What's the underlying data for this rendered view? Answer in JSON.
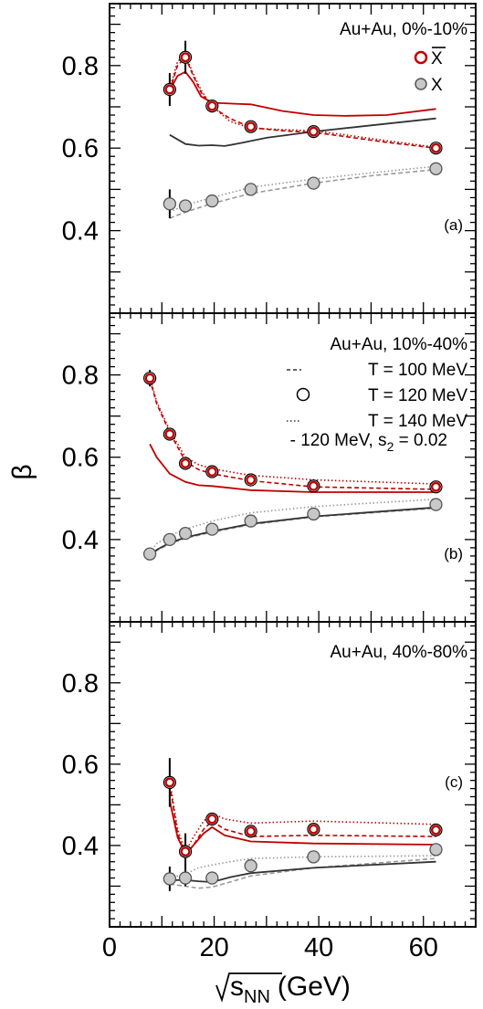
{
  "colors": {
    "anti": "#c00000",
    "particle": "#333333",
    "dashed_particle": "#999999",
    "marker_fill": "#c8c8c8",
    "frame": "#000000"
  },
  "chart_data": {
    "type": "scatter",
    "ylabel": "β",
    "xlabel_main": "s",
    "xlabel_sub": "NN",
    "xlabel_unit": "(GeV)",
    "xlim": [
      0,
      70
    ],
    "x_ticks": [
      0,
      20,
      40,
      60
    ],
    "y_ticks": [
      0.4,
      0.6,
      0.8
    ],
    "legend": {
      "anti_symbol": "X",
      "particle_symbol": "X",
      "line_dashed": "T = 100 MeV",
      "line_open": "T = 120 MeV",
      "line_dotted": "T = 140 MeV",
      "line_solid": "- 120 MeV, s",
      "line_solid_sub": "2",
      "line_solid_tail": " = 0.02"
    },
    "panels": [
      {
        "title": "Au+Au, 0%-10%",
        "label": "(a)",
        "ylim": [
          0.2,
          0.95
        ],
        "anti_points": {
          "x": [
            11.5,
            14.5,
            19.6,
            27,
            39,
            62.4
          ],
          "y": [
            0.742,
            0.82,
            0.702,
            0.652,
            0.64,
            0.6
          ],
          "err": [
            0.04,
            0.04,
            0.015,
            0.01,
            0.008,
            0.008
          ]
        },
        "particle_points": {
          "x": [
            11.5,
            14.5,
            19.6,
            27,
            39,
            62.4
          ],
          "y": [
            0.465,
            0.46,
            0.472,
            0.5,
            0.515,
            0.55
          ],
          "err": [
            0.035,
            0.012,
            0.01,
            0.008,
            0.008,
            0.008
          ]
        },
        "anti_solid": {
          "x": [
            11.5,
            13,
            14.5,
            16,
            17.5,
            19.6,
            23,
            27,
            33,
            39,
            45,
            53,
            62.4
          ],
          "y": [
            0.74,
            0.775,
            0.785,
            0.76,
            0.725,
            0.71,
            0.708,
            0.706,
            0.69,
            0.68,
            0.678,
            0.68,
            0.695
          ]
        },
        "anti_dashed": {
          "x": [
            11.5,
            13,
            14.5,
            16,
            17.5,
            19.6,
            23,
            27,
            33,
            39,
            45,
            53,
            62.4
          ],
          "y": [
            0.74,
            0.8,
            0.82,
            0.775,
            0.735,
            0.7,
            0.672,
            0.65,
            0.642,
            0.638,
            0.628,
            0.614,
            0.6
          ]
        },
        "anti_dotted": {
          "x": [
            11.5,
            13,
            14.5,
            16,
            17.5,
            19.6,
            23,
            27,
            33,
            39,
            45,
            53,
            62.4
          ],
          "y": [
            0.745,
            0.81,
            0.825,
            0.78,
            0.74,
            0.702,
            0.665,
            0.648,
            0.645,
            0.642,
            0.632,
            0.618,
            0.602
          ]
        },
        "particle_solid": {
          "x": [
            11.5,
            14.5,
            17,
            19.6,
            22,
            25,
            30,
            39,
            50,
            62.4
          ],
          "y": [
            0.632,
            0.61,
            0.606,
            0.607,
            0.605,
            0.612,
            0.625,
            0.64,
            0.655,
            0.672
          ]
        },
        "particle_dashed": {
          "x": [
            11.5,
            14.5,
            19.6,
            27,
            39,
            50,
            62.4
          ],
          "y": [
            0.43,
            0.445,
            0.466,
            0.49,
            0.515,
            0.533,
            0.548
          ]
        },
        "particle_dotted": {
          "x": [
            11.5,
            14.5,
            19.6,
            27,
            39,
            50,
            62.4
          ],
          "y": [
            0.445,
            0.462,
            0.48,
            0.505,
            0.525,
            0.54,
            0.556
          ]
        }
      },
      {
        "title": "Au+Au, 10%-40%",
        "label": "(b)",
        "ylim": [
          0.2,
          0.95
        ],
        "anti_points": {
          "x": [
            7.7,
            11.5,
            14.5,
            19.6,
            27,
            39,
            62.4
          ],
          "y": [
            0.792,
            0.656,
            0.585,
            0.565,
            0.545,
            0.53,
            0.528
          ],
          "err": [
            0.02,
            0.012,
            0.012,
            0.01,
            0.008,
            0.008,
            0.008
          ]
        },
        "particle_points": {
          "x": [
            7.7,
            11.5,
            14.5,
            19.6,
            27,
            39,
            62.4
          ],
          "y": [
            0.365,
            0.4,
            0.415,
            0.425,
            0.445,
            0.462,
            0.485
          ],
          "err": [
            0.015,
            0.012,
            0.01,
            0.008,
            0.008,
            0.008,
            0.008
          ]
        },
        "anti_solid": {
          "x": [
            7.7,
            9,
            11.5,
            14.5,
            17,
            19.6,
            27,
            39,
            62.4
          ],
          "y": [
            0.632,
            0.6,
            0.56,
            0.54,
            0.532,
            0.53,
            0.52,
            0.515,
            0.515
          ]
        },
        "anti_dashed": {
          "x": [
            7.7,
            9,
            11.5,
            14.5,
            17,
            19.6,
            27,
            39,
            62.4
          ],
          "y": [
            0.79,
            0.73,
            0.66,
            0.59,
            0.57,
            0.56,
            0.543,
            0.528,
            0.522
          ]
        },
        "anti_dotted": {
          "x": [
            7.7,
            9,
            11.5,
            14.5,
            17,
            19.6,
            27,
            39,
            62.4
          ],
          "y": [
            0.795,
            0.735,
            0.665,
            0.6,
            0.582,
            0.572,
            0.556,
            0.545,
            0.535
          ]
        },
        "particle_solid": {
          "x": [
            7.7,
            9,
            11.5,
            14.5,
            19.6,
            27,
            39,
            62.4
          ],
          "y": [
            0.36,
            0.375,
            0.392,
            0.405,
            0.42,
            0.438,
            0.456,
            0.478
          ]
        },
        "particle_dashed": {
          "x": [
            7.7,
            9,
            11.5,
            14.5,
            19.6,
            27,
            39,
            62.4
          ],
          "y": [
            0.358,
            0.373,
            0.39,
            0.403,
            0.418,
            0.436,
            0.455,
            0.476
          ]
        },
        "particle_dotted": {
          "x": [
            7.7,
            9,
            11.5,
            14.5,
            19.6,
            27,
            39,
            62.4
          ],
          "y": [
            0.368,
            0.39,
            0.41,
            0.425,
            0.445,
            0.465,
            0.48,
            0.498
          ]
        }
      },
      {
        "title": "Au+Au, 40%-80%",
        "label": "(c)",
        "ylim": [
          0.2,
          0.95
        ],
        "anti_points": {
          "x": [
            11.5,
            14.5,
            19.6,
            27,
            39,
            62.4
          ],
          "y": [
            0.555,
            0.385,
            0.465,
            0.435,
            0.44,
            0.438
          ],
          "err": [
            0.06,
            0.045,
            0.015,
            0.01,
            0.01,
            0.01
          ]
        },
        "particle_points": {
          "x": [
            11.5,
            14.5,
            19.6,
            27,
            39,
            62.4
          ],
          "y": [
            0.318,
            0.32,
            0.32,
            0.35,
            0.372,
            0.39
          ],
          "err": [
            0.03,
            0.02,
            0.01,
            0.008,
            0.008,
            0.008
          ]
        },
        "anti_solid": {
          "x": [
            11.5,
            13,
            14.5,
            16,
            18,
            19.6,
            22,
            27,
            39,
            62.4
          ],
          "y": [
            0.51,
            0.42,
            0.38,
            0.4,
            0.43,
            0.445,
            0.425,
            0.41,
            0.405,
            0.402
          ]
        },
        "anti_dashed": {
          "x": [
            11.5,
            13,
            14.5,
            16,
            18,
            19.6,
            22,
            27,
            39,
            62.4
          ],
          "y": [
            0.55,
            0.43,
            0.375,
            0.4,
            0.44,
            0.46,
            0.44,
            0.422,
            0.425,
            0.422
          ]
        },
        "anti_dotted": {
          "x": [
            11.5,
            13,
            14.5,
            16,
            18,
            19.6,
            22,
            27,
            39,
            62.4
          ],
          "y": [
            0.56,
            0.44,
            0.385,
            0.42,
            0.46,
            0.48,
            0.465,
            0.455,
            0.46,
            0.452
          ]
        },
        "particle_solid": {
          "x": [
            11.5,
            14.5,
            17,
            19.6,
            23,
            27,
            39,
            62.4
          ],
          "y": [
            0.315,
            0.315,
            0.312,
            0.31,
            0.322,
            0.332,
            0.345,
            0.36
          ]
        },
        "particle_dashed": {
          "x": [
            11.5,
            14.5,
            17,
            19.6,
            23,
            27,
            39,
            62.4
          ],
          "y": [
            0.305,
            0.3,
            0.295,
            0.298,
            0.31,
            0.325,
            0.345,
            0.368
          ]
        },
        "particle_dotted": {
          "x": [
            11.5,
            14.5,
            17,
            19.6,
            23,
            27,
            39,
            62.4
          ],
          "y": [
            0.32,
            0.33,
            0.345,
            0.352,
            0.36,
            0.368,
            0.372,
            0.375
          ]
        }
      }
    ]
  }
}
